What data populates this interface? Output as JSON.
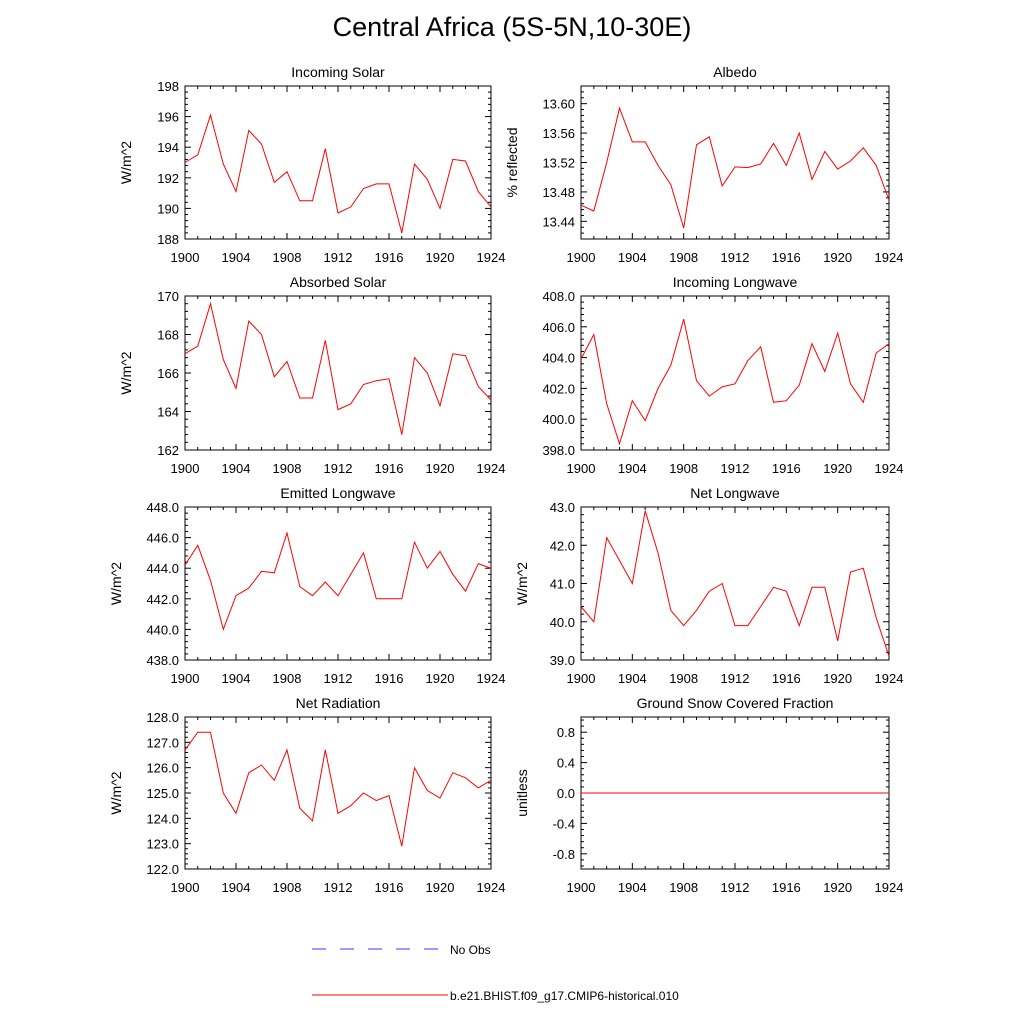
{
  "title": "Central Africa (5S-5N,10-30E)",
  "legend": {
    "obs_label": "No Obs",
    "model_label": "b.e21.BHIST.f09_g17.CMIP6-historical.010",
    "obs_color": "#3a3aff",
    "model_color": "#ff0000"
  },
  "chart_data": [
    {
      "type": "line",
      "title": "Incoming Solar",
      "ylabel": "W/m^2",
      "ylabel_side": "left",
      "xlim": [
        1900,
        1924
      ],
      "ylim": [
        188,
        198
      ],
      "yticks": [
        188,
        190,
        192,
        194,
        196,
        198
      ],
      "ytick_labels": [
        "188",
        "190",
        "192",
        "194",
        "196",
        "198"
      ],
      "xticks": [
        1900,
        1904,
        1908,
        1912,
        1916,
        1920,
        1924
      ],
      "x": [
        1900,
        1901,
        1902,
        1903,
        1904,
        1905,
        1906,
        1907,
        1908,
        1909,
        1910,
        1911,
        1912,
        1913,
        1914,
        1915,
        1916,
        1917,
        1918,
        1919,
        1920,
        1921,
        1922,
        1923,
        1924
      ],
      "series": [
        {
          "name": "b.e21.BHIST.f09_g17.CMIP6-historical.010",
          "values": [
            193.0,
            193.5,
            196.1,
            192.9,
            191.1,
            195.1,
            194.2,
            191.7,
            192.4,
            190.5,
            190.5,
            193.9,
            189.7,
            190.1,
            191.3,
            191.6,
            191.6,
            188.4,
            192.9,
            191.9,
            190.0,
            193.2,
            193.1,
            191.1,
            190.1
          ]
        }
      ]
    },
    {
      "type": "line",
      "title": "Albedo",
      "ylabel": "% reflected",
      "ylabel_side": "left",
      "xlim": [
        1900,
        1924
      ],
      "ylim": [
        13.416,
        13.624
      ],
      "yticks": [
        13.44,
        13.48,
        13.52,
        13.56,
        13.6
      ],
      "ytick_labels": [
        "13.44",
        "13.48",
        "13.52",
        "13.56",
        "13.60"
      ],
      "xticks": [
        1900,
        1904,
        1908,
        1912,
        1916,
        1920,
        1924
      ],
      "x": [
        1900,
        1901,
        1902,
        1903,
        1904,
        1905,
        1906,
        1907,
        1908,
        1909,
        1910,
        1911,
        1912,
        1913,
        1914,
        1915,
        1916,
        1917,
        1918,
        1919,
        1920,
        1921,
        1922,
        1923,
        1924
      ],
      "series": [
        {
          "name": "b.e21.BHIST.f09_g17.CMIP6-historical.010",
          "values": [
            13.462,
            13.454,
            13.52,
            13.594,
            13.548,
            13.548,
            13.516,
            13.49,
            13.431,
            13.544,
            13.555,
            13.488,
            13.514,
            13.513,
            13.518,
            13.546,
            13.516,
            13.56,
            13.497,
            13.535,
            13.511,
            13.522,
            13.54,
            13.516,
            13.469
          ]
        }
      ]
    },
    {
      "type": "line",
      "title": "Absorbed Solar",
      "ylabel": "W/m^2",
      "ylabel_side": "left",
      "xlim": [
        1900,
        1924
      ],
      "ylim": [
        162,
        170
      ],
      "yticks": [
        162,
        164,
        166,
        168,
        170
      ],
      "ytick_labels": [
        "162",
        "164",
        "166",
        "168",
        "170"
      ],
      "xticks": [
        1900,
        1904,
        1908,
        1912,
        1916,
        1920,
        1924
      ],
      "x": [
        1900,
        1901,
        1902,
        1903,
        1904,
        1905,
        1906,
        1907,
        1908,
        1909,
        1910,
        1911,
        1912,
        1913,
        1914,
        1915,
        1916,
        1917,
        1918,
        1919,
        1920,
        1921,
        1922,
        1923,
        1924
      ],
      "series": [
        {
          "name": "b.e21.BHIST.f09_g17.CMIP6-historical.010",
          "values": [
            167.0,
            167.4,
            169.6,
            166.7,
            165.2,
            168.7,
            168.0,
            165.8,
            166.6,
            164.7,
            164.7,
            167.7,
            164.1,
            164.4,
            165.4,
            165.6,
            165.7,
            162.8,
            166.8,
            166.0,
            164.3,
            167.0,
            166.9,
            165.3,
            164.6
          ]
        }
      ]
    },
    {
      "type": "line",
      "title": "Incoming Longwave",
      "ylabel": "",
      "ylabel_side": "left",
      "xlim": [
        1900,
        1924
      ],
      "ylim": [
        398,
        408
      ],
      "yticks": [
        398,
        400,
        402,
        404,
        406,
        408
      ],
      "ytick_labels": [
        "398.0",
        "400.0",
        "402.0",
        "404.0",
        "406.0",
        "408.0"
      ],
      "xticks": [
        1900,
        1904,
        1908,
        1912,
        1916,
        1920,
        1924
      ],
      "x": [
        1900,
        1901,
        1902,
        1903,
        1904,
        1905,
        1906,
        1907,
        1908,
        1909,
        1910,
        1911,
        1912,
        1913,
        1914,
        1915,
        1916,
        1917,
        1918,
        1919,
        1920,
        1921,
        1922,
        1923,
        1924
      ],
      "series": [
        {
          "name": "b.e21.BHIST.f09_g17.CMIP6-historical.010",
          "values": [
            403.9,
            405.5,
            401.0,
            398.4,
            401.2,
            399.9,
            402.0,
            403.5,
            406.5,
            402.5,
            401.5,
            402.1,
            402.3,
            403.8,
            404.7,
            401.1,
            401.2,
            402.2,
            404.9,
            403.1,
            405.6,
            402.3,
            401.1,
            404.3,
            404.9
          ]
        }
      ]
    },
    {
      "type": "line",
      "title": "Emitted Longwave",
      "ylabel": "W/m^2",
      "ylabel_side": "left",
      "xlim": [
        1900,
        1924
      ],
      "ylim": [
        438,
        448
      ],
      "yticks": [
        438,
        440,
        442,
        444,
        446,
        448
      ],
      "ytick_labels": [
        "438.0",
        "440.0",
        "442.0",
        "444.0",
        "446.0",
        "448.0"
      ],
      "xticks": [
        1900,
        1904,
        1908,
        1912,
        1916,
        1920,
        1924
      ],
      "x": [
        1900,
        1901,
        1902,
        1903,
        1904,
        1905,
        1906,
        1907,
        1908,
        1909,
        1910,
        1911,
        1912,
        1913,
        1914,
        1915,
        1916,
        1917,
        1918,
        1919,
        1920,
        1921,
        1922,
        1923,
        1924
      ],
      "series": [
        {
          "name": "b.e21.BHIST.f09_g17.CMIP6-historical.010",
          "values": [
            444.2,
            445.5,
            443.2,
            440.0,
            442.2,
            442.7,
            443.8,
            443.7,
            446.3,
            442.8,
            442.2,
            443.1,
            442.2,
            443.6,
            445.0,
            442.0,
            442.0,
            442.0,
            445.7,
            444.0,
            445.1,
            443.6,
            442.5,
            444.3,
            444.0
          ]
        }
      ]
    },
    {
      "type": "line",
      "title": "Net Longwave",
      "ylabel": "W/m^2",
      "ylabel_side": "left",
      "xlim": [
        1900,
        1924
      ],
      "ylim": [
        39,
        43
      ],
      "yticks": [
        39,
        40,
        41,
        42,
        43
      ],
      "ytick_labels": [
        "39.0",
        "40.0",
        "41.0",
        "42.0",
        "43.0"
      ],
      "xticks": [
        1900,
        1904,
        1908,
        1912,
        1916,
        1920,
        1924
      ],
      "x": [
        1900,
        1901,
        1902,
        1903,
        1904,
        1905,
        1906,
        1907,
        1908,
        1909,
        1910,
        1911,
        1912,
        1913,
        1914,
        1915,
        1916,
        1917,
        1918,
        1919,
        1920,
        1921,
        1922,
        1923,
        1924
      ],
      "series": [
        {
          "name": "b.e21.BHIST.f09_g17.CMIP6-historical.010",
          "values": [
            40.4,
            40.0,
            42.2,
            41.6,
            41.0,
            42.9,
            41.8,
            40.3,
            39.9,
            40.3,
            40.8,
            41.0,
            39.9,
            39.9,
            40.4,
            40.9,
            40.8,
            39.9,
            40.9,
            40.9,
            39.5,
            41.3,
            41.4,
            40.1,
            39.1
          ]
        }
      ]
    },
    {
      "type": "line",
      "title": "Net Radiation",
      "ylabel": "W/m^2",
      "ylabel_side": "left",
      "xlim": [
        1900,
        1924
      ],
      "ylim": [
        122,
        128
      ],
      "yticks": [
        122,
        123,
        124,
        125,
        126,
        127,
        128
      ],
      "ytick_labels": [
        "122.0",
        "123.0",
        "124.0",
        "125.0",
        "126.0",
        "127.0",
        "128.0"
      ],
      "xticks": [
        1900,
        1904,
        1908,
        1912,
        1916,
        1920,
        1924
      ],
      "x": [
        1900,
        1901,
        1902,
        1903,
        1904,
        1905,
        1906,
        1907,
        1908,
        1909,
        1910,
        1911,
        1912,
        1913,
        1914,
        1915,
        1916,
        1917,
        1918,
        1919,
        1920,
        1921,
        1922,
        1923,
        1924
      ],
      "series": [
        {
          "name": "b.e21.BHIST.f09_g17.CMIP6-historical.010",
          "values": [
            126.7,
            127.4,
            127.4,
            125.0,
            124.2,
            125.8,
            126.1,
            125.5,
            126.7,
            124.4,
            123.9,
            126.7,
            124.2,
            124.5,
            125.0,
            124.7,
            124.9,
            122.9,
            126.0,
            125.1,
            124.8,
            125.8,
            125.6,
            125.2,
            125.5
          ]
        }
      ]
    },
    {
      "type": "line",
      "title": "Ground Snow Covered Fraction",
      "ylabel": "unitless",
      "ylabel_side": "left",
      "xlim": [
        1900,
        1924
      ],
      "ylim": [
        -1.0,
        1.0
      ],
      "yticks": [
        -0.8,
        -0.4,
        0.0,
        0.4,
        0.8
      ],
      "ytick_labels": [
        "-0.8",
        "-0.4",
        "0.0",
        "0.4",
        "0.8"
      ],
      "xticks": [
        1900,
        1904,
        1908,
        1912,
        1916,
        1920,
        1924
      ],
      "x": [
        1900,
        1924
      ],
      "series": [
        {
          "name": "b.e21.BHIST.f09_g17.CMIP6-historical.010",
          "values": [
            0.0,
            0.0
          ]
        }
      ]
    }
  ]
}
